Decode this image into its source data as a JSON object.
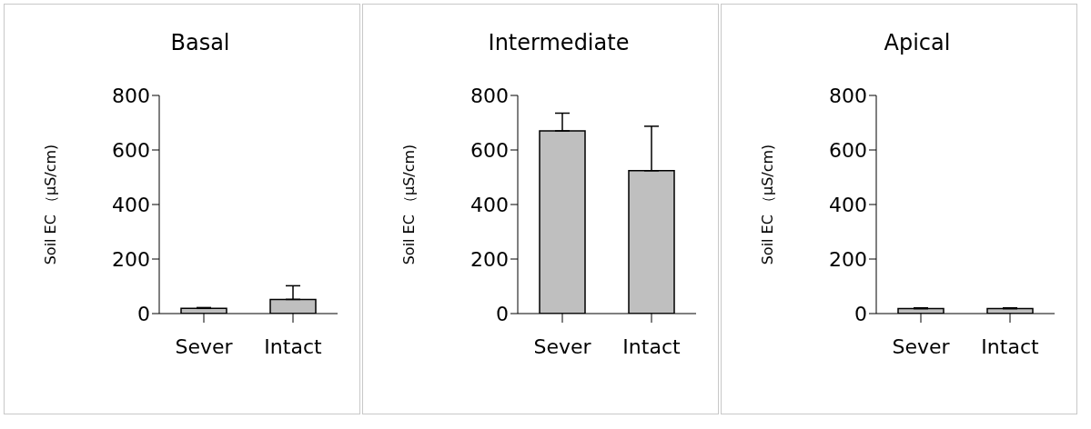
{
  "chart_data": [
    {
      "type": "bar",
      "title": "Basal",
      "ylabel": "Soil EC （μS/cm)",
      "categories": [
        "Sever",
        "Intact"
      ],
      "values": [
        19,
        52
      ],
      "errors": [
        [
          19,
          22
        ],
        [
          52,
          102
        ]
      ],
      "color": "#bfbfbf",
      "ylim": [
        0,
        800
      ],
      "yticks": [
        0,
        200,
        400,
        600,
        800
      ],
      "grid": false,
      "legend": false
    },
    {
      "type": "bar",
      "title": "Intermediate",
      "ylabel": "Soil EC （μS/cm)",
      "categories": [
        "Sever",
        "Intact"
      ],
      "values": [
        670,
        524
      ],
      "errors": [
        [
          670,
          735
        ],
        [
          524,
          687
        ]
      ],
      "color": "#bfbfbf",
      "ylim": [
        0,
        800
      ],
      "yticks": [
        0,
        200,
        400,
        600,
        800
      ],
      "grid": false,
      "legend": false
    },
    {
      "type": "bar",
      "title": "Apical",
      "ylabel": "Soil EC （μS/cm)",
      "categories": [
        "Sever",
        "Intact"
      ],
      "values": [
        18,
        18
      ],
      "errors": [
        [
          18,
          21
        ],
        [
          18,
          21
        ]
      ],
      "color": "#bfbfbf",
      "ylim": [
        0,
        800
      ],
      "yticks": [
        0,
        200,
        400,
        600,
        800
      ],
      "grid": false,
      "legend": false
    }
  ]
}
